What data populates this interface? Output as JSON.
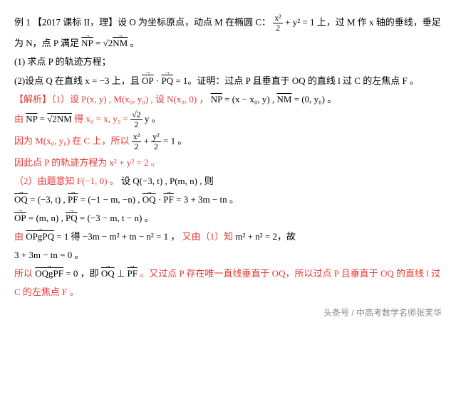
{
  "lines": {
    "p1a": "例 1 【2017 课标 II，理】设 O 为坐标原点，动点 M 在椭圆 C：",
    "p1b": "上，过 M 作 x 轴的垂线，垂足",
    "frac1_num": "x²",
    "frac1_den": "2",
    "frac1_plus": " + y² = 1",
    "p2a": "为 N，点 P 满足",
    "p2b": "。",
    "vec_np": "NP",
    "eq1": " = ",
    "sqrt2": "√2",
    "vec_nm": "NM",
    "p3": "(1)  求点 P 的轨迹方程；",
    "p4a": "(2)设点 Q 在直线 x = −3 上，且",
    "vec_op": "OP",
    "mid_dot": " · ",
    "vec_pq": "PQ",
    "p4b": " = 1。证明：过点 P 且垂直于 OQ 的直线 l 过 C 的左焦点 F 。",
    "s1a": "【解析】（1）设 P(x, y) , M(x₀, y₀) , 设 N(x₀, 0) ，",
    "s1_np": "NP",
    "s1_npval": " = (x − x₀, y) , ",
    "s1_nm": "NM",
    "s1_nmval": " = (0, y₀) 。",
    "s2a": "由 ",
    "s2_np": "NP",
    "s2_eq": "  =  ",
    "s2_sqrt": "√2NM",
    "s2b": " 得 x₀ = x,  y₀ = ",
    "s2_fnum": "√2",
    "s2_fden": "2",
    "s2c": " y 。",
    "s3a": "因为 M(x₀, y₀) 在 C 上，所以 ",
    "s3_f1num": "x²",
    "s3_f1den": "2",
    "s3_plus": " + ",
    "s3_f2num": "y²",
    "s3_f2den": "2",
    "s3b": " = 1 。",
    "s4": "因此点 P 的轨迹方程为 x² + y² = 2 。",
    "s5a": "（2）由题意知 F(−1, 0) 。",
    "s5b": "设 Q(−3, t) , P(m, n) , 则",
    "s6_oq": "OQ",
    "s6a": " = (−3, t) , ",
    "s6_pf": "PF",
    "s6b": " = (−1 − m, −n) , ",
    "s6c": " · ",
    "s6d": " = 3 + 3m − tn 。",
    "s7_op": "OP",
    "s7a": " = (m, n) , ",
    "s7_pq": "PQ",
    "s7b": " = (−3 − m, t − n) 。",
    "s8a": "由 ",
    "s8b": " = 1 得 ",
    "s8c": "−3m − m² + tn − n² = 1 ，",
    "s8d": "又由（1）知 ",
    "s8e": "m² + n² = 2，故",
    "s9": "3 + 3m − tn = 0 。",
    "s10a": "所以 ",
    "s10b": "  =  0 ，即 ",
    "s10c": " ⊥ ",
    "s10d": " 。又过点 P 存在唯一直线垂直于 OQ，所以过点 P 且垂直于 OQ 的直线 l 过",
    "s11": "C 的左焦点 F 。",
    "footer": "头条号 / 中高考数学名师张芙华"
  }
}
